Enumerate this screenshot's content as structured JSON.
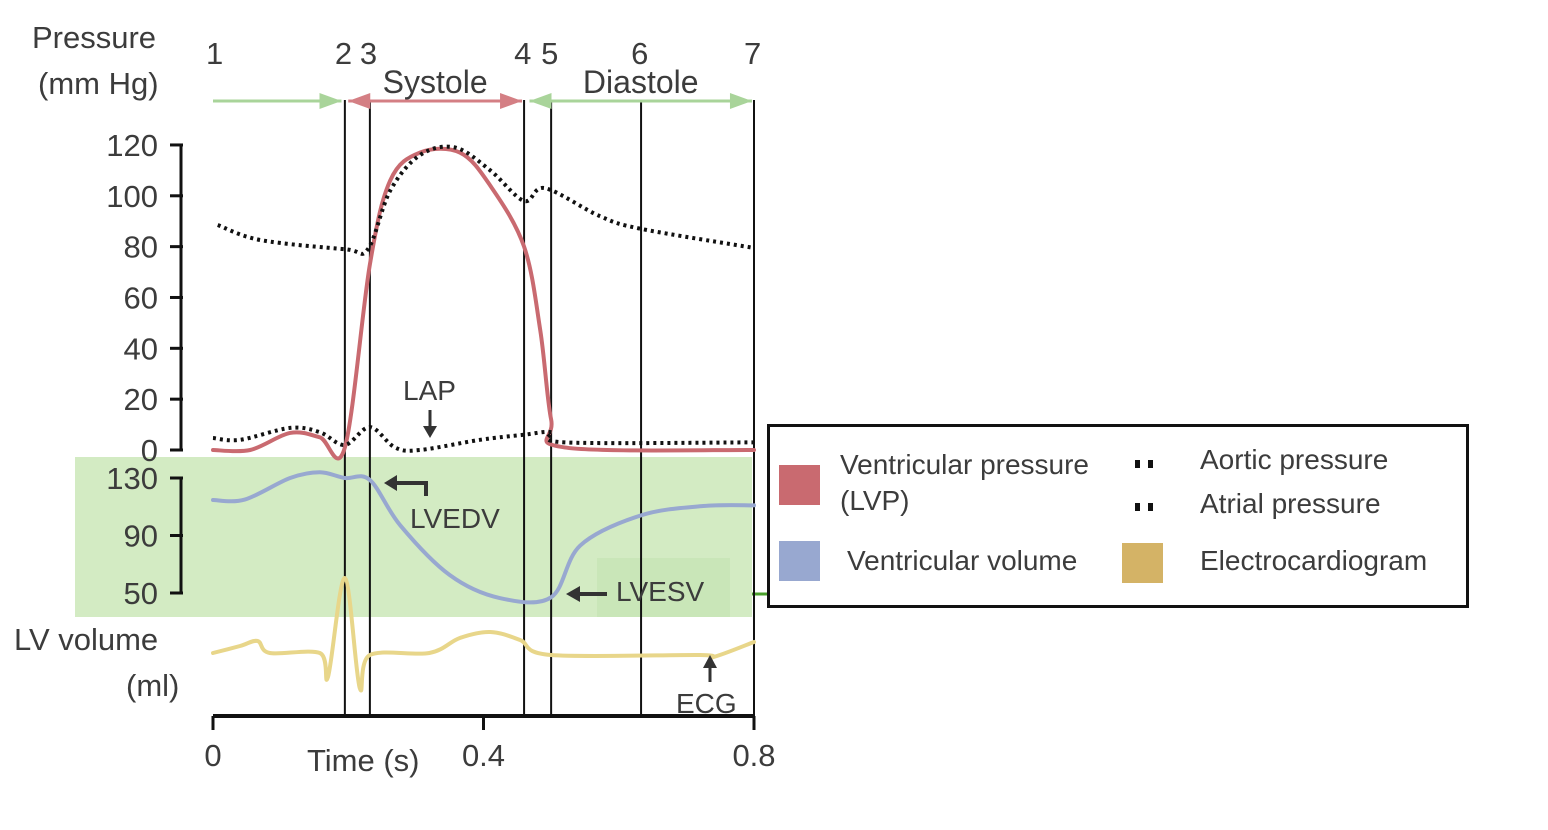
{
  "chart_data": {
    "type": "line",
    "title": "",
    "x_axis": {
      "label": "Time (s)",
      "range": [
        0,
        0.8
      ],
      "ticks": [
        {
          "value": 0,
          "label": "0"
        },
        {
          "value": 0.4,
          "label": "0.4"
        },
        {
          "value": 0.8,
          "label": "0.8"
        }
      ]
    },
    "pressure_axis": {
      "label_lines": [
        "Pressure",
        "(mm Hg)"
      ],
      "range": [
        0,
        120
      ],
      "ticks": [
        {
          "value": 0,
          "label": "0"
        },
        {
          "value": 20,
          "label": "20"
        },
        {
          "value": 40,
          "label": "40"
        },
        {
          "value": 60,
          "label": "60"
        },
        {
          "value": 80,
          "label": "80"
        },
        {
          "value": 100,
          "label": "100"
        },
        {
          "value": 120,
          "label": "120"
        }
      ]
    },
    "volume_axis": {
      "label_lines": [
        "LV volume",
        "(ml)"
      ],
      "range": [
        50,
        130
      ],
      "ticks": [
        {
          "value": 50,
          "label": "50"
        },
        {
          "value": 90,
          "label": "90"
        },
        {
          "value": 130,
          "label": "130"
        }
      ]
    },
    "phase_markers": [
      {
        "label": "1",
        "t": 0,
        "line": false
      },
      {
        "label": "2",
        "t": 0.195,
        "line": true
      },
      {
        "label": "3",
        "t": 0.232,
        "line": true
      },
      {
        "label": "4",
        "t": 0.46,
        "line": true
      },
      {
        "label": "5",
        "t": 0.5,
        "line": true
      },
      {
        "label": "6",
        "t": 0.633,
        "line": true
      },
      {
        "label": "7",
        "t": 0.8,
        "line": true
      }
    ],
    "phases": [
      {
        "label": "",
        "from": 0,
        "to": 0.19,
        "color": "#a9d49a",
        "arrows": "end"
      },
      {
        "label": "Systole",
        "from": 0.2,
        "to": 0.457,
        "color": "#d47f84",
        "arrows": "both"
      },
      {
        "label": "Diastole",
        "from": 0.468,
        "to": 0.797,
        "color": "#a9d49a",
        "arrows": "both"
      }
    ],
    "series": [
      {
        "name": "Ventricular pressure (LVP)",
        "axis": "pressure",
        "color": "#c96a70",
        "style": "solid",
        "t": [
          0,
          0.055,
          0.114,
          0.158,
          0.195,
          0.232,
          0.262,
          0.306,
          0.365,
          0.41,
          0.46,
          0.484,
          0.5,
          0.52,
          0.8
        ],
        "values": [
          0,
          0,
          6.7,
          5,
          1,
          73,
          106,
          117,
          117,
          104,
          80,
          47,
          12,
          1,
          0
        ]
      },
      {
        "name": "Aortic pressure",
        "axis": "pressure",
        "color": "#111111",
        "style": "dotted",
        "t": [
          0.007,
          0.07,
          0.195,
          0.229,
          0.262,
          0.306,
          0.358,
          0.41,
          0.46,
          0.491,
          0.572,
          0.633,
          0.8
        ],
        "values": [
          88.5,
          82.6,
          79,
          79,
          102,
          116,
          119,
          110,
          98,
          103,
          92,
          87,
          79.5
        ]
      },
      {
        "name": "Atrial pressure",
        "axis": "pressure",
        "color": "#111111",
        "style": "dotted",
        "t": [
          0,
          0.04,
          0.114,
          0.158,
          0.195,
          0.232,
          0.269,
          0.306,
          0.395,
          0.46,
          0.5,
          0.52,
          0.8
        ],
        "values": [
          4.7,
          4,
          8.7,
          7,
          2,
          9,
          1,
          0,
          4,
          6,
          7,
          3,
          3
        ]
      },
      {
        "name": "Ventricular volume",
        "axis": "volume",
        "color": "#98a8d0",
        "style": "solid",
        "t": [
          0,
          0.047,
          0.114,
          0.158,
          0.195,
          0.232,
          0.277,
          0.35,
          0.424,
          0.5,
          0.543,
          0.633,
          0.725,
          0.8
        ],
        "values": [
          114.7,
          115,
          130,
          134,
          130,
          128.6,
          97,
          62.5,
          46.5,
          47,
          83,
          104,
          110.5,
          111
        ]
      },
      {
        "name": "Electrocardiogram",
        "axis": "ecg",
        "color": "#e8d68a",
        "style": "solid",
        "t": [
          0,
          0.04,
          0.066,
          0.084,
          0.158,
          0.17,
          0.195,
          0.217,
          0.232,
          0.32,
          0.365,
          0.41,
          0.454,
          0.5,
          0.72,
          0.74,
          0.8
        ],
        "values": [
          0,
          0.7,
          1.2,
          0,
          0,
          -2.4,
          7.5,
          -3.5,
          -0.2,
          0,
          1.5,
          2.1,
          1.3,
          -0.2,
          -0.2,
          -0.4,
          1.1
        ]
      }
    ],
    "annotations": {
      "lap": "LAP",
      "lvedv": "LVEDV",
      "lvesv": "LVESV",
      "ecg": "ECG"
    },
    "legend": {
      "placement": "right",
      "items": [
        {
          "label": "Ventricular pressure (LVP)",
          "color": "#c96a70",
          "marker": "swatch"
        },
        {
          "label": "Aortic pressure",
          "color": "#111111",
          "marker": "dots"
        },
        {
          "label": "Atrial pressure",
          "color": "#111111",
          "marker": "dots"
        },
        {
          "label": "Ventricular volume",
          "color": "#98a8d0",
          "marker": "swatch"
        },
        {
          "label": "Electrocardiogram",
          "color": "#d4b366",
          "marker": "swatch"
        }
      ]
    },
    "highlight_color": "#d3ebc3"
  }
}
